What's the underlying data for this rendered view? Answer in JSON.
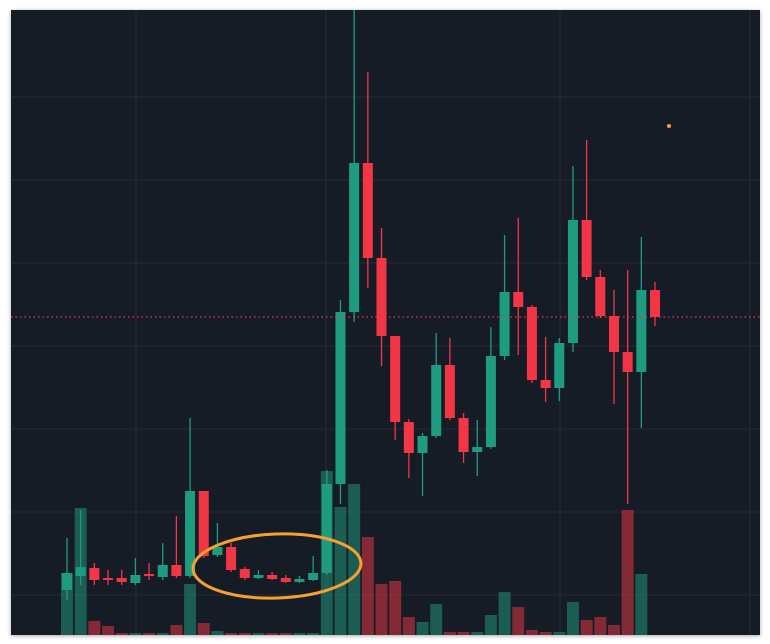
{
  "chart_data": {
    "type": "candlestick",
    "up_color": "#1f9c80",
    "down_color": "#f23645",
    "ylim": [
      0,
      625
    ],
    "volume_ylim": [
      0,
      625
    ],
    "price_line": 318,
    "open": [
      45,
      59,
      67,
      57,
      57,
      52,
      61,
      58,
      70,
      59,
      144,
      80,
      88,
      66,
      57,
      60,
      57,
      53,
      55,
      62,
      151,
      323,
      472,
      377,
      299,
      213,
      182,
      199,
      270,
      217,
      183,
      188,
      279,
      343,
      328,
      255,
      247,
      292,
      415,
      358,
      319,
      283,
      263,
      345
    ],
    "close": [
      62,
      68,
      55,
      55,
      53,
      60,
      59,
      70,
      59,
      144,
      79,
      88,
      65,
      57,
      60,
      56,
      53,
      56,
      62,
      151,
      323,
      472,
      377,
      299,
      213,
      182,
      199,
      270,
      217,
      183,
      188,
      279,
      343,
      328,
      255,
      247,
      292,
      415,
      358,
      319,
      283,
      263,
      345,
      318
    ],
    "high": [
      97,
      125,
      72,
      65,
      65,
      77,
      72,
      92,
      119,
      217,
      144,
      112,
      92,
      68,
      65,
      63,
      60,
      59,
      79,
      165,
      335,
      625,
      563,
      407,
      299,
      216,
      202,
      302,
      297,
      222,
      215,
      308,
      400,
      417,
      330,
      298,
      297,
      469,
      495,
      365,
      345,
      365,
      398,
      353
    ],
    "low": [
      35,
      50,
      50,
      50,
      50,
      50,
      55,
      55,
      57,
      57,
      77,
      78,
      63,
      55,
      56,
      55,
      52,
      52,
      54,
      60,
      131,
      313,
      347,
      269,
      195,
      157,
      139,
      197,
      215,
      172,
      159,
      186,
      275,
      280,
      252,
      233,
      234,
      283,
      355,
      317,
      231,
      131,
      207,
      309
    ],
    "volume": [
      62,
      127,
      14,
      9,
      2,
      2,
      2,
      2,
      10,
      51,
      12,
      4,
      2,
      2,
      2,
      2,
      2,
      2,
      2,
      164,
      128,
      151,
      98,
      51,
      54,
      18,
      13,
      31,
      3,
      3,
      3,
      20,
      43,
      28,
      5,
      3,
      3,
      33,
      15,
      18,
      10,
      125,
      61,
      0
    ]
  }
}
